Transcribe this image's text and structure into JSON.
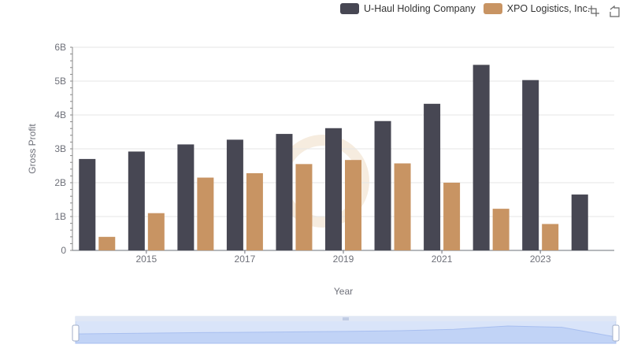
{
  "chart_data": {
    "type": "bar",
    "xlabel": "Year",
    "ylabel": "Gross Profit",
    "ylim": [
      0,
      6
    ],
    "y_ticks": [
      "0",
      "1B",
      "2B",
      "3B",
      "4B",
      "5B",
      "6B"
    ],
    "x_tick_labels": [
      "2015",
      "2017",
      "2019",
      "2021",
      "2023"
    ],
    "categories": [
      "2014",
      "2015",
      "2016",
      "2017",
      "2018",
      "2019",
      "2020",
      "2021",
      "2022",
      "2023",
      "2024"
    ],
    "unit": "billions",
    "series": [
      {
        "name": "U-Haul Holding Company",
        "color": "#474753",
        "values": [
          2.7,
          2.92,
          3.13,
          3.27,
          3.44,
          3.61,
          3.82,
          4.33,
          5.48,
          5.03,
          1.65
        ]
      },
      {
        "name": "XPO Logistics, Inc.",
        "color": "#c89463",
        "values": [
          0.4,
          1.1,
          2.15,
          2.28,
          2.55,
          2.67,
          2.57,
          2.0,
          1.23,
          0.78,
          null
        ]
      }
    ],
    "legend_position": "top-right",
    "grid": true
  },
  "toolbox": {
    "zoom_icon": "zoom-select-icon",
    "restore_icon": "restore-icon"
  }
}
